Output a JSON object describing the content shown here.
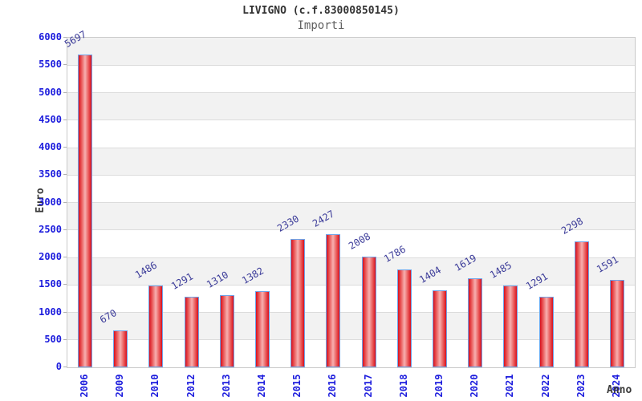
{
  "header": {
    "title": "LIVIGNO (c.f.83000850145)",
    "subtitle": "Importi"
  },
  "chart_data": {
    "type": "bar",
    "title": "LIVIGNO (c.f.83000850145)",
    "subtitle": "Importi",
    "xlabel": "Anno",
    "ylabel": "Euro",
    "categories": [
      "2006",
      "2009",
      "2010",
      "2012",
      "2013",
      "2014",
      "2015",
      "2016",
      "2017",
      "2018",
      "2019",
      "2020",
      "2021",
      "2022",
      "2023",
      "2024"
    ],
    "values": [
      5697,
      670,
      1486,
      1291,
      1310,
      1382,
      2330,
      2427,
      2008,
      1786,
      1404,
      1619,
      1485,
      1291,
      2298,
      1591
    ],
    "ylim": [
      0,
      6000
    ],
    "ytick_step": 500,
    "grid": true,
    "legend": "none",
    "band_colors": [
      "#ffffff",
      "#f2f2f2"
    ],
    "colors": {
      "bar_edge": "#d8101e",
      "bar_center": "#f7b0b0",
      "bar_border": "#6fa3e8",
      "axis_tick_label": "#1c1cdd",
      "value_label": "#3b3b99",
      "gridline": "#dcdcdc",
      "plot_border": "#c9c9c9",
      "title": "#333333",
      "subtitle": "#606060",
      "axis_title": "#3a3a3a"
    }
  }
}
